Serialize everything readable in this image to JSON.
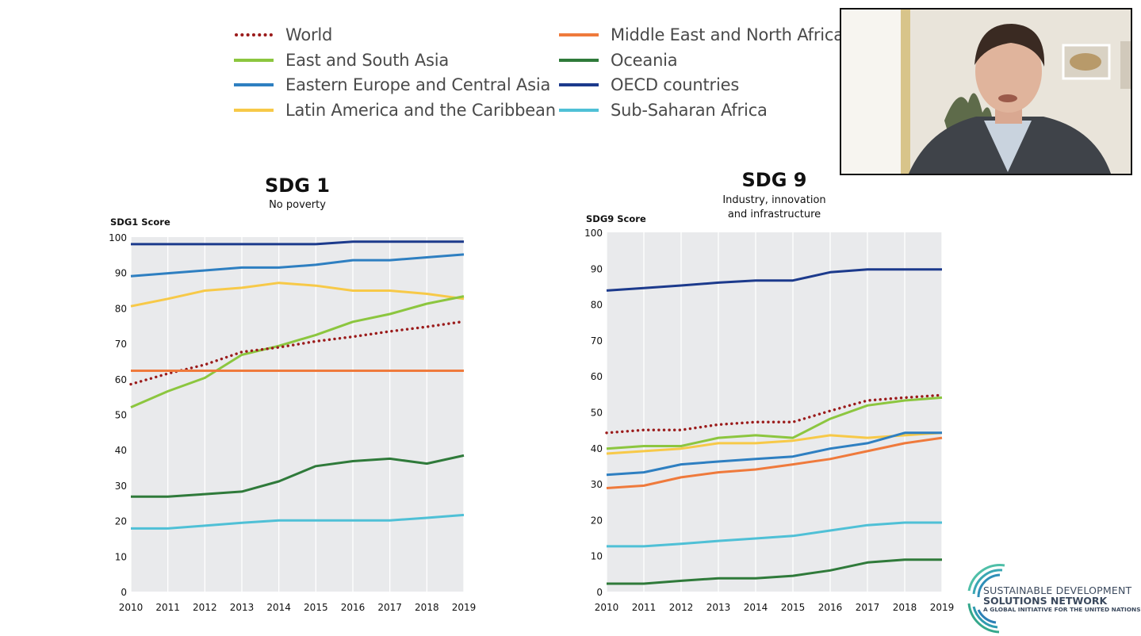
{
  "legend": [
    {
      "key": "world",
      "label": "World",
      "color": "#9b1b1b",
      "dotted": true
    },
    {
      "key": "esa",
      "label": "East and South Asia",
      "color": "#8cc63f"
    },
    {
      "key": "eeca",
      "label": "Eastern Europe and Central Asia",
      "color": "#2e7fc1"
    },
    {
      "key": "lac",
      "label": "Latin America and the Caribbean",
      "color": "#f7c948"
    },
    {
      "key": "mena",
      "label": "Middle East and North Africa",
      "color": "#ef7a3c"
    },
    {
      "key": "oceania",
      "label": "Oceania",
      "color": "#2f7a3a"
    },
    {
      "key": "oecd",
      "label": "OECD countries",
      "color": "#1c3a8c"
    },
    {
      "key": "ssa",
      "label": "Sub-Saharan Africa",
      "color": "#4fc0d6"
    }
  ],
  "chart_data": [
    {
      "id": "sdg1",
      "type": "line",
      "title": "SDG 1",
      "subtitle": [
        "No poverty"
      ],
      "ylabel": "SDG1 Score",
      "xlabel": "",
      "x": [
        2010,
        2011,
        2012,
        2013,
        2014,
        2015,
        2016,
        2017,
        2018,
        2019
      ],
      "ylim": [
        0,
        100
      ],
      "yticks": [
        0,
        10,
        20,
        30,
        40,
        50,
        60,
        70,
        80,
        90,
        100
      ],
      "grid": true,
      "series": [
        {
          "name": "OECD countries",
          "key": "oecd",
          "values": [
            98,
            98,
            98,
            98,
            98,
            98,
            98.7,
            98.7,
            98.7,
            98.7
          ]
        },
        {
          "name": "Eastern Europe and Central Asia",
          "key": "eeca",
          "values": [
            89,
            89.8,
            90.6,
            91.4,
            91.4,
            92.2,
            93.5,
            93.5,
            94.3,
            95.1
          ]
        },
        {
          "name": "Latin America and the Caribbean",
          "key": "lac",
          "values": [
            80.5,
            82.6,
            84.9,
            85.7,
            87.1,
            86.3,
            84.9,
            84.9,
            84,
            82.6
          ]
        },
        {
          "name": "East and South Asia",
          "key": "esa",
          "values": [
            52,
            56.5,
            60.3,
            66.8,
            69.3,
            72.4,
            76.1,
            78.3,
            81.2,
            83.3
          ]
        },
        {
          "name": "World",
          "key": "world",
          "values": [
            58.5,
            61.5,
            64,
            67.6,
            68.9,
            70.6,
            71.9,
            73.4,
            74.7,
            76.2
          ]
        },
        {
          "name": "Middle East and North Africa",
          "key": "mena",
          "values": [
            62.3,
            62.3,
            62.3,
            62.3,
            62.3,
            62.3,
            62.3,
            62.3,
            62.3,
            62.3
          ]
        },
        {
          "name": "Oceania",
          "key": "oceania",
          "values": [
            26.8,
            26.8,
            27.5,
            28.2,
            31.1,
            35.4,
            36.8,
            37.5,
            36.1,
            38.4
          ]
        },
        {
          "name": "Sub-Saharan Africa",
          "key": "ssa",
          "values": [
            17.8,
            17.8,
            18.6,
            19.4,
            20.1,
            20.1,
            20.1,
            20.1,
            20.8,
            21.6
          ]
        }
      ]
    },
    {
      "id": "sdg9",
      "type": "line",
      "title": "SDG 9",
      "subtitle": [
        "Industry, innovation",
        "and infrastructure"
      ],
      "ylabel": "SDG9 Score",
      "xlabel": "",
      "x": [
        2010,
        2011,
        2012,
        2013,
        2014,
        2015,
        2016,
        2017,
        2018,
        2019
      ],
      "ylim": [
        0,
        100
      ],
      "yticks": [
        0,
        10,
        20,
        30,
        40,
        50,
        60,
        70,
        80,
        90,
        100
      ],
      "grid": true,
      "series": [
        {
          "name": "OECD countries",
          "key": "oecd",
          "values": [
            83.8,
            84.5,
            85.2,
            86,
            86.6,
            86.6,
            88.9,
            89.7,
            89.7,
            89.7
          ]
        },
        {
          "name": "World",
          "key": "world",
          "values": [
            44.2,
            45,
            45,
            46.5,
            47.2,
            47.2,
            50.3,
            53.2,
            54,
            54.7
          ]
        },
        {
          "name": "East and South Asia",
          "key": "esa",
          "values": [
            39.8,
            40.5,
            40.5,
            42.8,
            43.5,
            42.8,
            48.1,
            51.8,
            53.2,
            54
          ]
        },
        {
          "name": "Latin America and the Caribbean",
          "key": "lac",
          "values": [
            38.4,
            39.1,
            39.8,
            41.3,
            41.3,
            42,
            43.5,
            42.8,
            43.5,
            44.2
          ]
        },
        {
          "name": "Eastern Europe and Central Asia",
          "key": "eeca",
          "values": [
            32.5,
            33.2,
            35.4,
            36.2,
            36.9,
            37.6,
            39.8,
            41.3,
            44.2,
            44.2
          ]
        },
        {
          "name": "Middle East and North Africa",
          "key": "mena",
          "values": [
            28.8,
            29.5,
            31.8,
            33.2,
            34,
            35.4,
            36.9,
            39.1,
            41.3,
            42.8
          ]
        },
        {
          "name": "Sub-Saharan Africa",
          "key": "ssa",
          "values": [
            12.6,
            12.6,
            13.3,
            14.1,
            14.8,
            15.5,
            17,
            18.5,
            19.2,
            19.2
          ]
        },
        {
          "name": "Oceania",
          "key": "oceania",
          "values": [
            2.2,
            2.2,
            3,
            3.7,
            3.7,
            4.4,
            5.9,
            8.1,
            8.9,
            8.9
          ]
        }
      ]
    }
  ],
  "branding": {
    "line1": "SUSTAINABLE DEVELOPMENT",
    "line2": "SOLUTIONS NETWORK",
    "line3": "A GLOBAL INITIATIVE FOR THE UNITED NATIONS"
  }
}
